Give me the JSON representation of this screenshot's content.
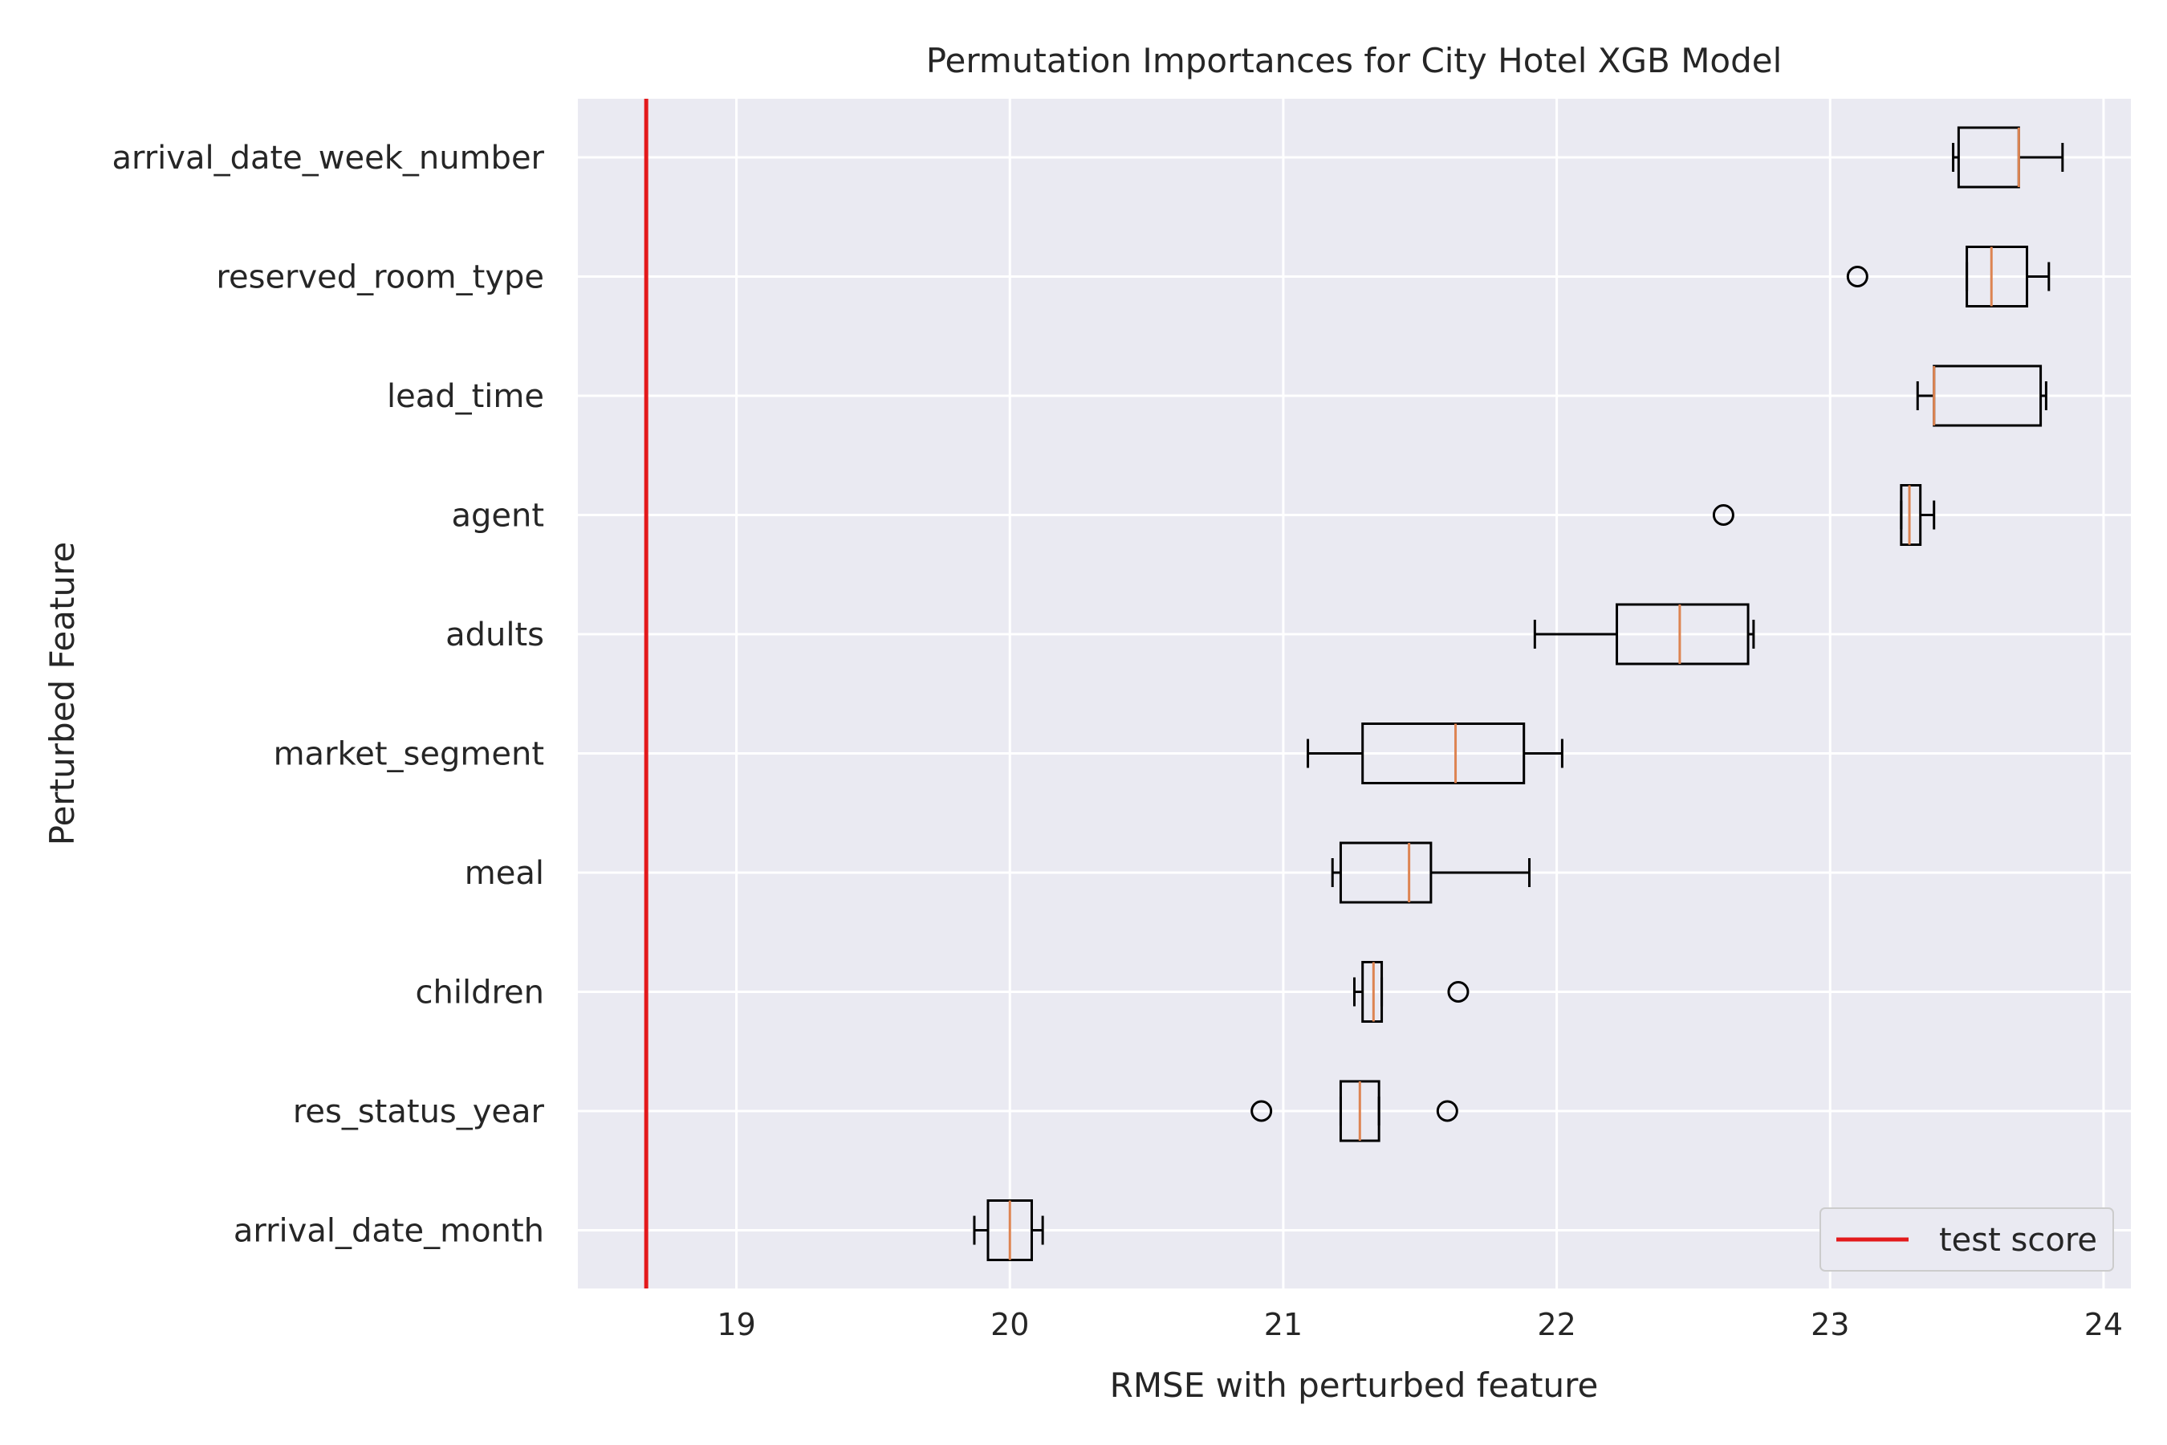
{
  "chart_data": {
    "type": "boxplot",
    "orientation": "horizontal",
    "title": "Permutation Importances for City Hotel XGB Model",
    "xlabel": "RMSE with perturbed feature",
    "ylabel": "Perturbed Feature",
    "xlim": [
      18.42,
      24.1
    ],
    "xticks": [
      19,
      20,
      21,
      22,
      23,
      24
    ],
    "grid": true,
    "legend": {
      "position": "lower-right",
      "entries": [
        {
          "label": "test score",
          "color": "#e31a1c"
        }
      ]
    },
    "reference_line": {
      "label": "test score",
      "x": 18.67,
      "color": "#e31a1c"
    },
    "colors": {
      "plot_bg": "#eaeaf2",
      "grid": "#ffffff",
      "box": "#000000",
      "median": "#dd8452"
    },
    "features": [
      {
        "name": "arrival_date_week_number",
        "whislo": 23.45,
        "q1": 23.47,
        "med": 23.69,
        "q3": 23.69,
        "whishi": 23.85,
        "fliers": []
      },
      {
        "name": "reserved_room_type",
        "whislo": 23.5,
        "q1": 23.5,
        "med": 23.59,
        "q3": 23.72,
        "whishi": 23.8,
        "fliers": [
          23.1
        ]
      },
      {
        "name": "lead_time",
        "whislo": 23.32,
        "q1": 23.38,
        "med": 23.38,
        "q3": 23.77,
        "whishi": 23.79,
        "fliers": []
      },
      {
        "name": "agent",
        "whislo": 23.26,
        "q1": 23.26,
        "med": 23.29,
        "q3": 23.33,
        "whishi": 23.38,
        "fliers": [
          22.61
        ]
      },
      {
        "name": "adults",
        "whislo": 21.92,
        "q1": 22.22,
        "med": 22.45,
        "q3": 22.7,
        "whishi": 22.72,
        "fliers": []
      },
      {
        "name": "market_segment",
        "whislo": 21.09,
        "q1": 21.29,
        "med": 21.63,
        "q3": 21.88,
        "whishi": 22.02,
        "fliers": []
      },
      {
        "name": "meal",
        "whislo": 21.18,
        "q1": 21.21,
        "med": 21.46,
        "q3": 21.54,
        "whishi": 21.9,
        "fliers": []
      },
      {
        "name": "children",
        "whislo": 21.26,
        "q1": 21.29,
        "med": 21.33,
        "q3": 21.36,
        "whishi": 21.36,
        "fliers": [
          21.64
        ]
      },
      {
        "name": "res_status_year",
        "whislo": 21.21,
        "q1": 21.21,
        "med": 21.28,
        "q3": 21.35,
        "whishi": 21.35,
        "fliers": [
          20.92,
          21.6
        ]
      },
      {
        "name": "arrival_date_month",
        "whislo": 19.87,
        "q1": 19.92,
        "med": 20.0,
        "q3": 20.08,
        "whishi": 20.12,
        "fliers": []
      }
    ]
  }
}
